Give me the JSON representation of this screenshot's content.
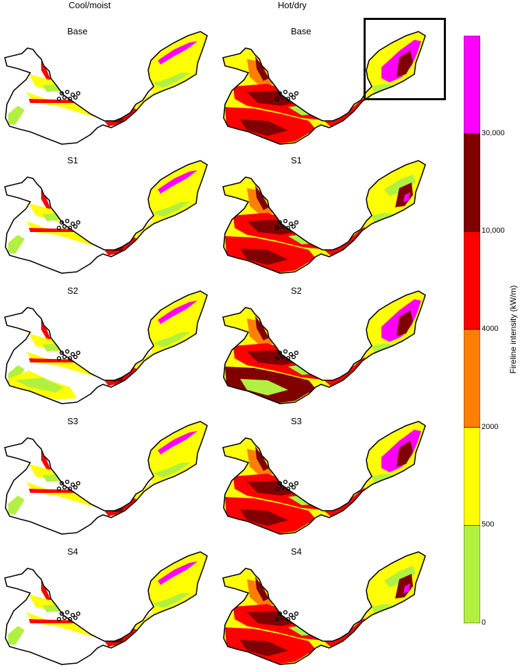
{
  "columns": [
    "Cool/moist",
    "Hot/dry"
  ],
  "panels": [
    {
      "label": "Base",
      "scenario": "Base",
      "climate": "Cool/moist"
    },
    {
      "label": "Base",
      "scenario": "Base",
      "climate": "Hot/dry"
    },
    {
      "label": "S1",
      "scenario": "S1",
      "climate": "Cool/moist"
    },
    {
      "label": "S1",
      "scenario": "S1",
      "climate": "Hot/dry"
    },
    {
      "label": "S2",
      "scenario": "S2",
      "climate": "Cool/moist"
    },
    {
      "label": "S2",
      "scenario": "S2",
      "climate": "Hot/dry"
    },
    {
      "label": "S3",
      "scenario": "S3",
      "climate": "Cool/moist"
    },
    {
      "label": "S3",
      "scenario": "S3",
      "climate": "Hot/dry"
    },
    {
      "label": "S4",
      "scenario": "S4",
      "climate": "Cool/moist"
    },
    {
      "label": "S4",
      "scenario": "S4",
      "climate": "Hot/dry"
    }
  ],
  "legend": {
    "title": "Fireline intensity (kW/m)",
    "classes": [
      {
        "from": 0,
        "to": 500,
        "color": "#b2f040"
      },
      {
        "from": 500,
        "to": 2000,
        "color": "#ffff00"
      },
      {
        "from": 2000,
        "to": 4000,
        "color": "#ff8000"
      },
      {
        "from": 4000,
        "to": 10000,
        "color": "#ff0000"
      },
      {
        "from": 10000,
        "to": 30000,
        "color": "#800000"
      },
      {
        "from": 30000,
        "to": null,
        "color": "#ff00ff"
      }
    ],
    "tick_labels": [
      "0",
      "500",
      "2000",
      "4000",
      "10,000",
      "30,000"
    ]
  }
}
